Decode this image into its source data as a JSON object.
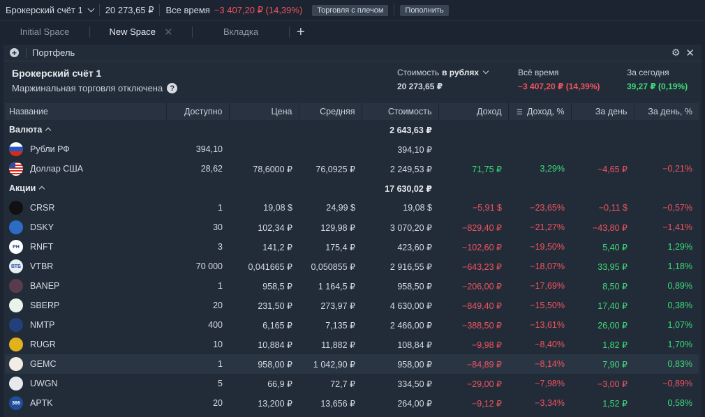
{
  "topbar": {
    "account": "Брокерский счёт 1",
    "total": "20 273,65 ₽",
    "alltime_label": "Все время",
    "alltime_value": "−3 407,20 ₽ (14,39%)",
    "margin_button": "Торговля с плечом",
    "deposit_button": "Пополнить"
  },
  "tabs": [
    {
      "label": "Initial Space"
    },
    {
      "label": "New Space"
    },
    {
      "label": "Вкладка"
    }
  ],
  "panel": {
    "title": "Портфель",
    "account_name": "Брокерский счёт 1",
    "margin_status": "Маржинальная торговля отключена",
    "help": "?",
    "value_label": "Стоимость",
    "value_currency": "в рублях",
    "value": "20 273,65 ₽",
    "alltime_label": "Всё время",
    "alltime_value": "−3 407,20 ₽ (14,39%)",
    "today_label": "За сегодня",
    "today_value": "39,27 ₽ (0,19%)"
  },
  "columns": [
    "Название",
    "Доступно",
    "Цена",
    "Средняя",
    "Стоимость",
    "Доход",
    "Доход, %",
    "За день",
    "За день, %"
  ],
  "groups": {
    "currency": {
      "label": "Валюта",
      "value": "2 643,63 ₽"
    },
    "stocks": {
      "label": "Акции",
      "value": "17 630,02 ₽"
    }
  },
  "currency_rows": [
    {
      "name": "Рубли РФ",
      "logo": "ru-flag",
      "avail": "394,10",
      "price": "",
      "avg": "",
      "value": "394,10 ₽",
      "pnl": "",
      "pnl_pct": "",
      "day": "",
      "day_pct": ""
    },
    {
      "name": "Доллар США",
      "logo": "us-flag",
      "avail": "28,62",
      "price": "78,6000 ₽",
      "avg": "76,0925 ₽",
      "value": "2 249,53 ₽",
      "pnl": "71,75 ₽",
      "pnl_pct": "3,29%",
      "day": "−4,65 ₽",
      "day_pct": "−0,21%"
    }
  ],
  "stock_rows": [
    {
      "name": "CRSR",
      "logo_color": "#111111",
      "logo_text": "",
      "avail": "1",
      "price": "19,08 $",
      "avg": "24,99 $",
      "value": "19,08 $",
      "pnl": "−5,91 $",
      "pnl_pct": "−23,65%",
      "day": "−0,11 $",
      "day_pct": "−0,57%"
    },
    {
      "name": "DSKY",
      "logo_color": "#2d6cc4",
      "logo_text": "",
      "avail": "30",
      "price": "102,34 ₽",
      "avg": "129,98 ₽",
      "value": "3 070,20 ₽",
      "pnl": "−829,40 ₽",
      "pnl_pct": "−21,27%",
      "day": "−43,80 ₽",
      "day_pct": "−1,41%"
    },
    {
      "name": "RNFT",
      "logo_color": "#ffffff",
      "logo_text": "PH",
      "avail": "3",
      "price": "141,2 ₽",
      "avg": "175,4 ₽",
      "value": "423,60 ₽",
      "pnl": "−102,60 ₽",
      "pnl_pct": "−19,50%",
      "day": "5,40 ₽",
      "day_pct": "1,29%"
    },
    {
      "name": "VTBR",
      "logo_color": "#e8eef6",
      "logo_text": "ВТБ",
      "avail": "70 000",
      "price": "0,041665 ₽",
      "avg": "0,050855 ₽",
      "value": "2 916,55 ₽",
      "pnl": "−643,23 ₽",
      "pnl_pct": "−18,07%",
      "day": "33,95 ₽",
      "day_pct": "1,18%"
    },
    {
      "name": "BANEP",
      "logo_color": "#5a3a4e",
      "logo_text": "",
      "avail": "1",
      "price": "958,5 ₽",
      "avg": "1 164,5 ₽",
      "value": "958,50 ₽",
      "pnl": "−206,00 ₽",
      "pnl_pct": "−17,69%",
      "day": "8,50 ₽",
      "day_pct": "0,89%"
    },
    {
      "name": "SBERP",
      "logo_color": "#e8f4ea",
      "logo_text": "",
      "avail": "20",
      "price": "231,50 ₽",
      "avg": "273,97 ₽",
      "value": "4 630,00 ₽",
      "pnl": "−849,40 ₽",
      "pnl_pct": "−15,50%",
      "day": "17,40 ₽",
      "day_pct": "0,38%"
    },
    {
      "name": "NMTP",
      "logo_color": "#24407a",
      "logo_text": "",
      "avail": "400",
      "price": "6,165 ₽",
      "avg": "7,135 ₽",
      "value": "2 466,00 ₽",
      "pnl": "−388,50 ₽",
      "pnl_pct": "−13,61%",
      "day": "26,00 ₽",
      "day_pct": "1,07%"
    },
    {
      "name": "RUGR",
      "logo_color": "#e2b21c",
      "logo_text": "",
      "avail": "10",
      "price": "10,884 ₽",
      "avg": "11,882 ₽",
      "value": "108,84 ₽",
      "pnl": "−9,98 ₽",
      "pnl_pct": "−8,40%",
      "day": "1,82 ₽",
      "day_pct": "1,70%"
    },
    {
      "name": "GEMC",
      "logo_color": "#f1ece4",
      "logo_text": "",
      "avail": "1",
      "price": "958,00 ₽",
      "avg": "1 042,90 ₽",
      "value": "958,00 ₽",
      "pnl": "−84,89 ₽",
      "pnl_pct": "−8,14%",
      "day": "7,90 ₽",
      "day_pct": "0,83%",
      "highlight": true
    },
    {
      "name": "UWGN",
      "logo_color": "#e6e9ee",
      "logo_text": "",
      "avail": "5",
      "price": "66,9 ₽",
      "avg": "72,7 ₽",
      "value": "334,50 ₽",
      "pnl": "−29,00 ₽",
      "pnl_pct": "−7,98%",
      "day": "−3,00 ₽",
      "day_pct": "−0,89%"
    },
    {
      "name": "APTK",
      "logo_color": "#1f4d9a",
      "logo_text": "366",
      "avail": "20",
      "price": "13,200 ₽",
      "avg": "13,656 ₽",
      "value": "264,00 ₽",
      "pnl": "−9,12 ₽",
      "pnl_pct": "−3,34%",
      "day": "1,52 ₽",
      "day_pct": "0,58%"
    }
  ],
  "colors": {
    "negative": "#f0535f",
    "positive": "#3ddc7a",
    "background": "#1b2430",
    "panel": "#222c38"
  }
}
